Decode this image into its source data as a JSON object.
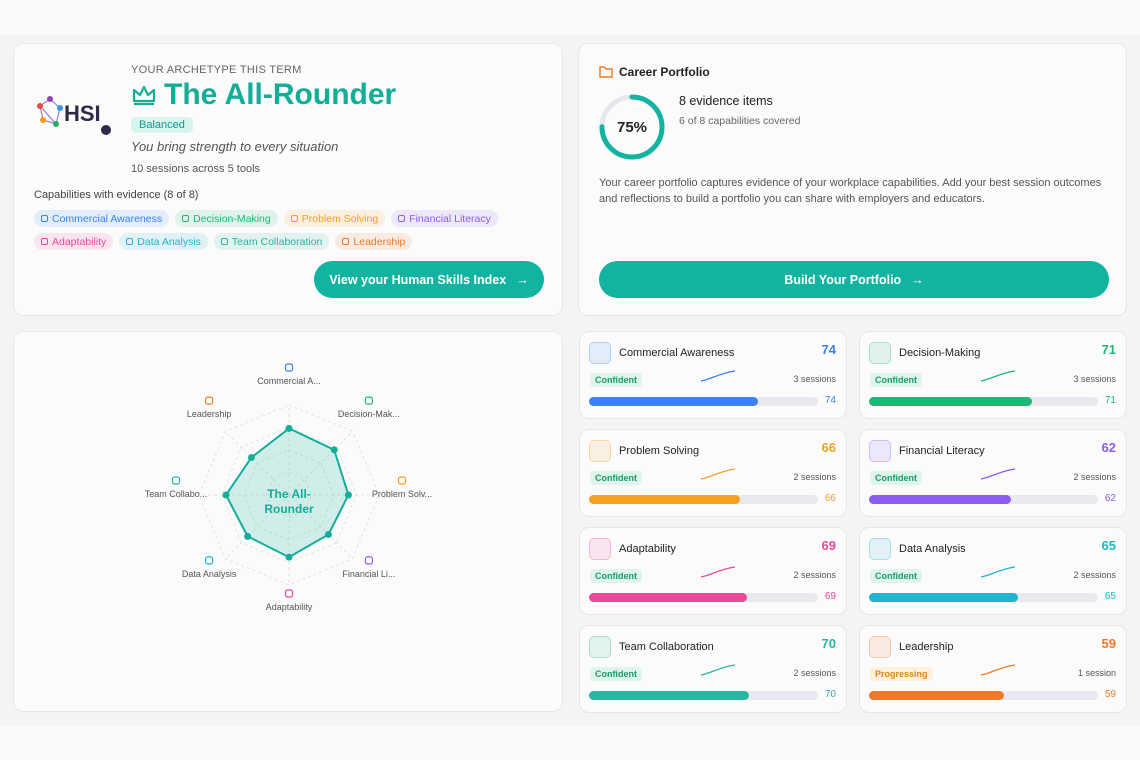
{
  "archetype": {
    "logo": "HSI",
    "eyebrow": "YOUR ARCHETYPE THIS TERM",
    "title": "The All-Rounder",
    "badge": "Balanced",
    "tagline": "You bring strength to every situation",
    "sessions": "10 sessions across 5 tools",
    "capabilities_heading": "Capabilities with evidence (8 of 8)",
    "button": "View your Human Skills Index"
  },
  "portfolio": {
    "title": "Career Portfolio",
    "ring": {
      "value": 75,
      "label": "75%"
    },
    "evidence": "8 evidence items",
    "covered": "6 of 8 capabilities covered",
    "description": "Your career portfolio captures evidence of your workplace capabilities. Add your best session outcomes and reflections to build a portfolio you can share with employers and educators.",
    "button": "Build Your Portfolio"
  },
  "radar": {
    "axes": [
      "Commercial A...",
      "Decision-Mak...",
      "Problem Solv...",
      "Financial Li...",
      "Adaptability",
      "Data Analysis",
      "Team Collabo...",
      "Leadership"
    ]
  },
  "skills": [
    {
      "name": "Commercial Awareness",
      "score": 74,
      "level": "Confident",
      "sessions": "3 sessions",
      "color": "#3b82f6"
    },
    {
      "name": "Decision-Making",
      "score": 71,
      "level": "Confident",
      "sessions": "3 sessions",
      "color": "#22b573"
    },
    {
      "name": "Problem Solving",
      "score": 66,
      "level": "Confident",
      "sessions": "2 sessions",
      "color": "#f5a020"
    },
    {
      "name": "Financial Literacy",
      "score": 62,
      "level": "Confident",
      "sessions": "2 sessions",
      "color": "#8b5cf6"
    },
    {
      "name": "Adaptability",
      "score": 69,
      "level": "Confident",
      "sessions": "2 sessions",
      "color": "#ec4899"
    },
    {
      "name": "Data Analysis",
      "score": 65,
      "level": "Confident",
      "sessions": "2 sessions",
      "color": "#1fb5d0"
    },
    {
      "name": "Team Collaboration",
      "score": 70,
      "level": "Confident",
      "sessions": "2 sessions",
      "color": "#2bb5a0"
    },
    {
      "name": "Leadership",
      "score": 59,
      "level": "Progressing",
      "sessions": "1 session",
      "color": "#f07a2a"
    }
  ]
}
